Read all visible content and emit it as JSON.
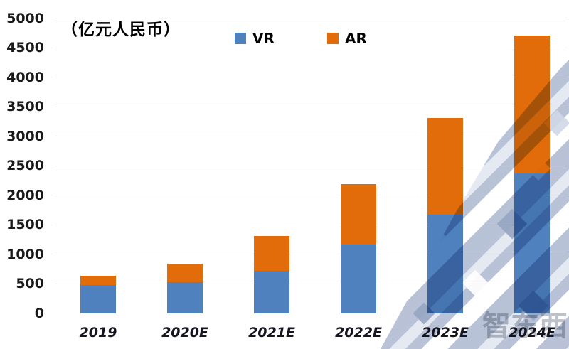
{
  "header": {
    "unit_label": "（亿元人民币）"
  },
  "legend": {
    "items": [
      {
        "label": "VR",
        "color": "#4E81BD"
      },
      {
        "label": "AR",
        "color": "#E36C0A"
      }
    ]
  },
  "watermark": {
    "logo_text": "智东西"
  },
  "colors": {
    "vr_blue": "#4E81BD",
    "ar_orange": "#E36C0A",
    "gridline": "#D8D8D8",
    "axis_text": "#1A1A1A",
    "background": "#FFFFFF",
    "watermark_stripe": "#B1BCD3",
    "watermark_logo_gray": "#AEB2BC"
  },
  "chart_data": {
    "type": "bar",
    "stacked": true,
    "title": "（亿元人民币）",
    "categories": [
      "2019",
      "2020E",
      "2021E",
      "2022E",
      "2023E",
      "2024E"
    ],
    "series": [
      {
        "name": "VR",
        "color": "#4E81BD",
        "values": [
          480,
          520,
          720,
          1160,
          1670,
          2360
        ]
      },
      {
        "name": "AR",
        "color": "#E36C0A",
        "values": [
          150,
          320,
          590,
          1030,
          1630,
          2340
        ]
      }
    ],
    "totals": [
      630,
      840,
      1310,
      2190,
      3300,
      4700
    ],
    "xlabel": "",
    "ylabel": "",
    "ylim": [
      0,
      5000
    ],
    "ytick_step": 500,
    "grid": true,
    "legend_position": "top-center"
  }
}
